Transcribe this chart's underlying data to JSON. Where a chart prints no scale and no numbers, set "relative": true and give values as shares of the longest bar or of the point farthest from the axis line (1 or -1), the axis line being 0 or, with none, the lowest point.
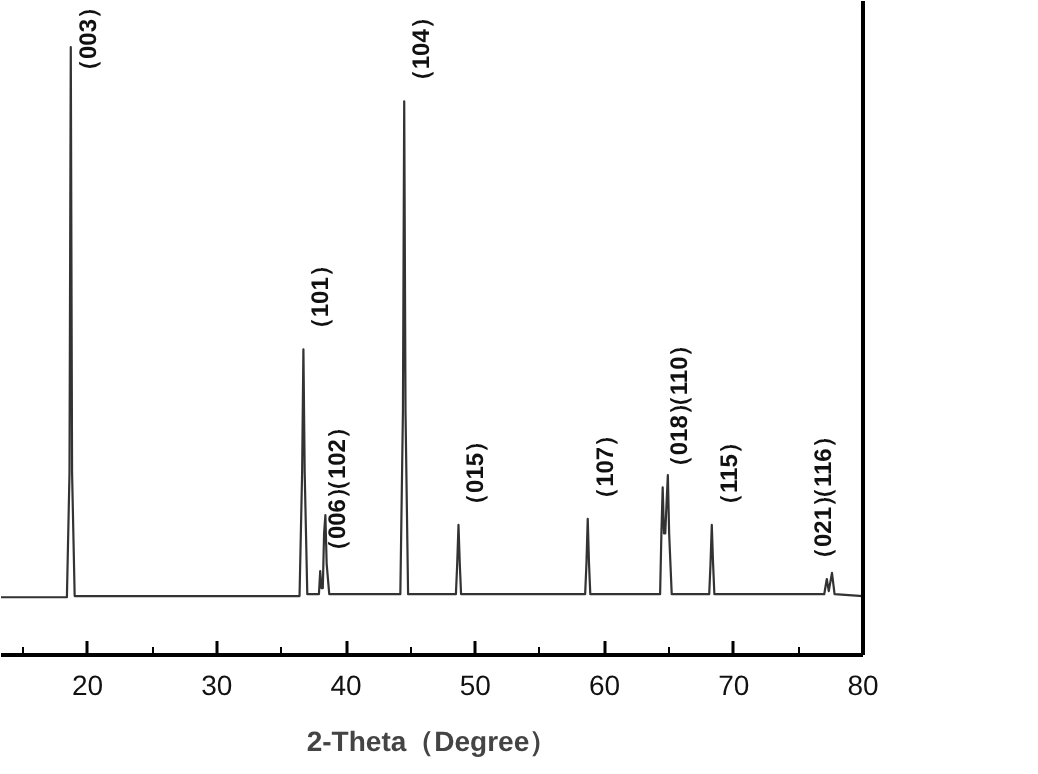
{
  "chart_data": {
    "type": "line",
    "relative": true,
    "xlabel": "2-Theta（Degree）",
    "xlim": [
      13.3,
      80
    ],
    "xticks": [
      {
        "value": 15,
        "label": null
      },
      20,
      {
        "value": 25,
        "label": null
      },
      30,
      {
        "value": 35,
        "label": null
      },
      40,
      {
        "value": 45,
        "label": null
      },
      50,
      {
        "value": 55,
        "label": null
      },
      60,
      {
        "value": 65,
        "label": null
      },
      70,
      {
        "value": 75,
        "label": null
      },
      80
    ],
    "grid": false,
    "marker": "none",
    "line_style": "solid",
    "tick_labels": "x",
    "series": [
      {
        "color": "#333333",
        "x": [
          13.3,
          18.4,
          18.6,
          18.7,
          18.8,
          19.0,
          25,
          36.4,
          36.6,
          36.7,
          36.8,
          37.0,
          37.9,
          38.0,
          38.1,
          38.2,
          38.3,
          38.4,
          38.5,
          38.7,
          44.2,
          44.4,
          44.5,
          44.6,
          44.8,
          48.5,
          48.6,
          48.7,
          48.8,
          48.9,
          58.5,
          58.6,
          58.7,
          58.8,
          58.9,
          64.3,
          64.4,
          64.5,
          64.6,
          64.7,
          64.8,
          64.9,
          65.0,
          65.2,
          68.1,
          68.2,
          68.3,
          68.4,
          68.5,
          77.0,
          77.2,
          77.35,
          77.6,
          77.8,
          80
        ],
        "values": [
          0.095,
          0.095,
          0.3,
          1.0,
          0.3,
          0.097,
          0.097,
          0.097,
          0.3,
          0.503,
          0.3,
          0.1,
          0.1,
          0.138,
          0.11,
          0.11,
          0.2,
          0.23,
          0.15,
          0.1,
          0.1,
          0.4,
          0.911,
          0.4,
          0.1,
          0.1,
          0.15,
          0.214,
          0.15,
          0.1,
          0.1,
          0.15,
          0.224,
          0.15,
          0.1,
          0.1,
          0.2,
          0.276,
          0.2,
          0.2,
          0.25,
          0.296,
          0.2,
          0.1,
          0.1,
          0.15,
          0.214,
          0.15,
          0.1,
          0.1,
          0.125,
          0.105,
          0.135,
          0.1,
          0.097
        ]
      }
    ],
    "annotations": [
      {
        "text": "（003）",
        "x": 18.7,
        "y": 1.0
      },
      {
        "text": "（101）",
        "x": 36.7,
        "y": 0.503
      },
      {
        "text": "（006）",
        "x": 38.0,
        "y": 0.138
      },
      {
        "text": "（102）",
        "x": 38.4,
        "y": 0.23
      },
      {
        "text": "（104）",
        "x": 44.5,
        "y": 0.911
      },
      {
        "text": "（015）",
        "x": 48.7,
        "y": 0.214
      },
      {
        "text": "（107）",
        "x": 58.7,
        "y": 0.224
      },
      {
        "text": "（018）",
        "x": 64.5,
        "y": 0.276
      },
      {
        "text": "（110）",
        "x": 64.9,
        "y": 0.296
      },
      {
        "text": "（115）",
        "x": 68.3,
        "y": 0.214
      },
      {
        "text": "（021）",
        "x": 77.2,
        "y": 0.125
      },
      {
        "text": "（116）",
        "x": 77.6,
        "y": 0.135
      }
    ]
  }
}
